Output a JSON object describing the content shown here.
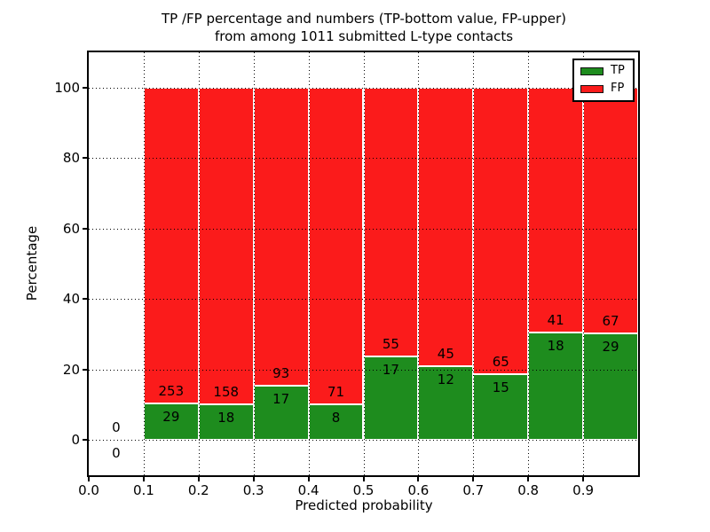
{
  "chart_data": {
    "type": "bar",
    "stacked": true,
    "title_line1": "TP /FP percentage and numbers (TP-bottom value, FP-upper)",
    "title_line2": "from among 1011 submitted L-type contacts",
    "total_submitted": 1011,
    "xlabel": "Predicted probability",
    "ylabel": "Percentage",
    "xlim": [
      0.0,
      1.0
    ],
    "ylim": [
      -10,
      110
    ],
    "grid": true,
    "y_ticks": [
      {
        "value": 0,
        "label": "0"
      },
      {
        "value": 20,
        "label": "20"
      },
      {
        "value": 40,
        "label": "40"
      },
      {
        "value": 60,
        "label": "60"
      },
      {
        "value": 80,
        "label": "80"
      },
      {
        "value": 100,
        "label": "100"
      }
    ],
    "x_ticks": [
      {
        "value": 0.0,
        "label": "0.0"
      },
      {
        "value": 0.1,
        "label": "0.1"
      },
      {
        "value": 0.2,
        "label": "0.2"
      },
      {
        "value": 0.3,
        "label": "0.3"
      },
      {
        "value": 0.4,
        "label": "0.4"
      },
      {
        "value": 0.5,
        "label": "0.5"
      },
      {
        "value": 0.6,
        "label": "0.6"
      },
      {
        "value": 0.7,
        "label": "0.7"
      },
      {
        "value": 0.8,
        "label": "0.8"
      },
      {
        "value": 0.9,
        "label": "0.9"
      }
    ],
    "legend": [
      {
        "label": "TP",
        "color": "#1e8c1e"
      },
      {
        "label": "FP",
        "color": "#fb1b1b"
      }
    ],
    "colors": {
      "tp": "#1e8c1e",
      "fp": "#fb1b1b",
      "bar_edge": "#ffffff",
      "grid": "#000000",
      "text": "#000000"
    },
    "bins": [
      {
        "start": 0.0,
        "end": 0.1,
        "tp": 0,
        "fp": 0,
        "tp_percent": 0.0
      },
      {
        "start": 0.1,
        "end": 0.2,
        "tp": 29,
        "fp": 253,
        "tp_percent": 10.28
      },
      {
        "start": 0.2,
        "end": 0.3,
        "tp": 18,
        "fp": 158,
        "tp_percent": 10.23
      },
      {
        "start": 0.3,
        "end": 0.4,
        "tp": 17,
        "fp": 93,
        "tp_percent": 15.45
      },
      {
        "start": 0.4,
        "end": 0.5,
        "tp": 8,
        "fp": 71,
        "tp_percent": 10.13
      },
      {
        "start": 0.5,
        "end": 0.6,
        "tp": 17,
        "fp": 55,
        "tp_percent": 23.61
      },
      {
        "start": 0.6,
        "end": 0.7,
        "tp": 12,
        "fp": 45,
        "tp_percent": 21.05
      },
      {
        "start": 0.7,
        "end": 0.8,
        "tp": 15,
        "fp": 65,
        "tp_percent": 18.75
      },
      {
        "start": 0.8,
        "end": 0.9,
        "tp": 18,
        "fp": 41,
        "tp_percent": 30.51
      },
      {
        "start": 0.9,
        "end": 1.0,
        "tp": 29,
        "fp": 67,
        "tp_percent": 30.21
      }
    ]
  }
}
